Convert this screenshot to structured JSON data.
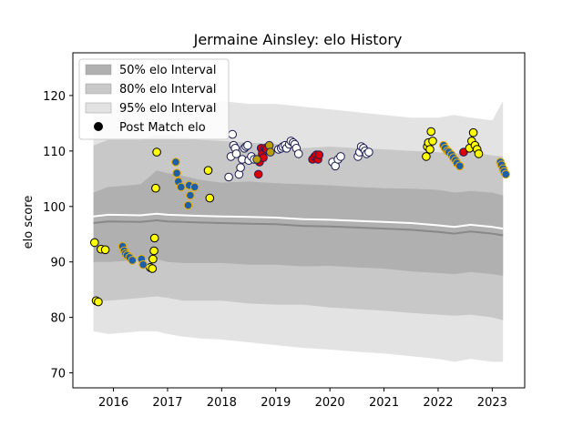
{
  "chart_data": {
    "type": "scatter",
    "title": "Jermaine Ainsley: elo History",
    "xlabel": "",
    "ylabel": "elo score",
    "xlim": [
      2015.25,
      2023.6
    ],
    "ylim": [
      67.3,
      127.7
    ],
    "xticks": [
      2016,
      2017,
      2018,
      2019,
      2020,
      2021,
      2022,
      2023
    ],
    "xtick_labels": [
      "2016",
      "2017",
      "2018",
      "2019",
      "2020",
      "2021",
      "2022",
      "2023"
    ],
    "yticks": [
      70,
      80,
      90,
      100,
      110,
      120
    ],
    "ytick_labels": [
      "70",
      "80",
      "90",
      "100",
      "110",
      "120"
    ],
    "grid": false,
    "legend_position": "top-left",
    "legend": [
      {
        "label": "50% elo Interval",
        "kind": "patch",
        "color": "#b0b0b0"
      },
      {
        "label": "80% elo Interval",
        "kind": "patch",
        "color": "#c8c8c8"
      },
      {
        "label": "95% elo Interval",
        "kind": "patch",
        "color": "#e3e3e3"
      },
      {
        "label": "Post Match elo",
        "kind": "marker",
        "color": "#000000"
      }
    ],
    "intervals": {
      "x": [
        2015.63,
        2015.9,
        2016.5,
        2016.8,
        2017.0,
        2017.3,
        2017.6,
        2018.0,
        2018.5,
        2019.0,
        2019.5,
        2020.0,
        2020.5,
        2021.0,
        2021.5,
        2022.0,
        2022.3,
        2022.6,
        2023.0,
        2023.2
      ],
      "mean": [
        97.0,
        97.3,
        97.2,
        97.5,
        97.3,
        97.2,
        97.1,
        97.0,
        96.9,
        96.8,
        96.5,
        96.4,
        96.2,
        96.0,
        95.8,
        95.4,
        95.1,
        95.5,
        95.1,
        94.8
      ],
      "p50": [
        [
          90.0,
          102.5
        ],
        [
          90.0,
          103.5
        ],
        [
          90.3,
          104.0
        ],
        [
          90.5,
          106.5
        ],
        [
          90.0,
          106.0
        ],
        [
          89.8,
          105.5
        ],
        [
          89.8,
          104.8
        ],
        [
          89.8,
          104.3
        ],
        [
          89.5,
          104.5
        ],
        [
          89.5,
          104.2
        ],
        [
          89.2,
          104.0
        ],
        [
          89.3,
          103.8
        ],
        [
          89.0,
          103.5
        ],
        [
          88.8,
          103.3
        ],
        [
          88.3,
          103.2
        ],
        [
          88.0,
          103.0
        ],
        [
          87.8,
          102.5
        ],
        [
          88.2,
          102.8
        ],
        [
          87.8,
          102.5
        ],
        [
          87.5,
          102.0
        ]
      ],
      "p80": [
        [
          83.0,
          111.0
        ],
        [
          83.0,
          112.0
        ],
        [
          83.5,
          112.0
        ],
        [
          83.8,
          113.0
        ],
        [
          83.5,
          113.0
        ],
        [
          83.0,
          112.5
        ],
        [
          83.0,
          112.0
        ],
        [
          83.0,
          111.8
        ],
        [
          82.5,
          111.5
        ],
        [
          82.3,
          111.3
        ],
        [
          82.3,
          110.5
        ],
        [
          81.8,
          110.8
        ],
        [
          81.5,
          110.5
        ],
        [
          81.2,
          110.3
        ],
        [
          80.8,
          110.0
        ],
        [
          80.5,
          109.8
        ],
        [
          80.3,
          109.5
        ],
        [
          80.5,
          109.8
        ],
        [
          80.0,
          109.2
        ],
        [
          79.5,
          109.0
        ]
      ],
      "p95": [
        [
          77.5,
          117.0
        ],
        [
          77.0,
          117.5
        ],
        [
          77.5,
          118.0
        ],
        [
          77.5,
          118.5
        ],
        [
          77.0,
          118.5
        ],
        [
          76.5,
          118.0
        ],
        [
          76.2,
          118.0
        ],
        [
          76.0,
          119.0
        ],
        [
          75.5,
          118.5
        ],
        [
          75.0,
          118.5
        ],
        [
          74.5,
          118.0
        ],
        [
          74.2,
          117.5
        ],
        [
          73.8,
          117.0
        ],
        [
          73.5,
          116.5
        ],
        [
          73.0,
          116.0
        ],
        [
          72.5,
          116.0
        ],
        [
          72.0,
          116.5
        ],
        [
          72.5,
          116.0
        ],
        [
          72.0,
          115.5
        ],
        [
          72.0,
          119.0
        ]
      ]
    },
    "series": [
      {
        "color": "#ffff00",
        "edge": "#000000",
        "points": [
          [
            2015.65,
            93.5
          ],
          [
            2015.68,
            83.0
          ],
          [
            2015.72,
            82.8
          ],
          [
            2015.77,
            92.3
          ],
          [
            2015.85,
            92.2
          ],
          [
            2016.68,
            89.0
          ],
          [
            2016.72,
            88.8
          ],
          [
            2016.73,
            90.5
          ],
          [
            2016.75,
            92.0
          ],
          [
            2016.76,
            94.3
          ],
          [
            2016.78,
            103.3
          ],
          [
            2016.8,
            109.8
          ],
          [
            2017.75,
            106.5
          ],
          [
            2017.78,
            101.5
          ]
        ]
      },
      {
        "color": "#1f5fa8",
        "edge": "#f0b000",
        "points": [
          [
            2016.17,
            92.8
          ],
          [
            2016.2,
            92.0
          ],
          [
            2016.22,
            91.5
          ],
          [
            2016.25,
            91.2
          ],
          [
            2016.3,
            90.8
          ],
          [
            2016.35,
            90.3
          ],
          [
            2016.52,
            90.5
          ],
          [
            2016.55,
            89.5
          ],
          [
            2017.15,
            108.0
          ],
          [
            2017.17,
            106.0
          ],
          [
            2017.2,
            104.5
          ],
          [
            2017.25,
            103.5
          ],
          [
            2017.38,
            100.2
          ],
          [
            2017.4,
            103.8
          ],
          [
            2017.42,
            102.0
          ],
          [
            2017.5,
            103.5
          ]
        ]
      },
      {
        "color": "#ffffff",
        "edge": "#1a1a50",
        "points": [
          [
            2018.13,
            105.3
          ],
          [
            2018.17,
            109.0
          ],
          [
            2018.2,
            113.0
          ],
          [
            2018.22,
            111.0
          ],
          [
            2018.25,
            110.5
          ],
          [
            2018.27,
            109.5
          ],
          [
            2018.32,
            105.8
          ],
          [
            2018.35,
            107.0
          ],
          [
            2018.38,
            108.5
          ],
          [
            2018.42,
            110.5
          ],
          [
            2018.45,
            110.8
          ],
          [
            2018.48,
            111.0
          ],
          [
            2018.5,
            108.3
          ],
          [
            2018.55,
            109.0
          ],
          [
            2018.6,
            108.5
          ],
          [
            2019.05,
            110.3
          ],
          [
            2019.1,
            110.5
          ],
          [
            2019.13,
            110.8
          ],
          [
            2019.17,
            111.0
          ],
          [
            2019.2,
            110.5
          ],
          [
            2019.25,
            111.2
          ],
          [
            2019.28,
            111.8
          ],
          [
            2019.32,
            111.5
          ],
          [
            2019.35,
            111.2
          ],
          [
            2019.38,
            110.5
          ],
          [
            2019.42,
            109.5
          ],
          [
            2020.05,
            108.0
          ],
          [
            2020.1,
            107.3
          ],
          [
            2020.15,
            108.5
          ],
          [
            2020.2,
            109.0
          ],
          [
            2020.52,
            109.0
          ],
          [
            2020.55,
            109.8
          ],
          [
            2020.58,
            110.8
          ],
          [
            2020.62,
            110.5
          ],
          [
            2020.65,
            110.0
          ],
          [
            2020.68,
            109.5
          ],
          [
            2020.72,
            109.8
          ]
        ]
      },
      {
        "color": "#dd0000",
        "edge": "#202060",
        "points": [
          [
            2018.68,
            105.8
          ],
          [
            2018.7,
            108.0
          ],
          [
            2018.73,
            110.5
          ],
          [
            2018.75,
            109.5
          ],
          [
            2018.77,
            108.8
          ],
          [
            2018.8,
            110.5
          ],
          [
            2018.83,
            110.3
          ],
          [
            2019.68,
            108.5
          ],
          [
            2019.72,
            109.0
          ],
          [
            2019.75,
            109.3
          ],
          [
            2019.78,
            108.5
          ],
          [
            2019.8,
            109.3
          ],
          [
            2022.47,
            109.8
          ]
        ]
      },
      {
        "color": "#b8a000",
        "edge": "#202060",
        "points": [
          [
            2018.65,
            108.5
          ],
          [
            2018.88,
            111.0
          ],
          [
            2018.9,
            109.8
          ]
        ]
      },
      {
        "color": "#ffff00",
        "edge": "#000000",
        "points": [
          [
            2021.78,
            109.0
          ],
          [
            2021.8,
            110.8
          ],
          [
            2021.82,
            111.5
          ],
          [
            2021.85,
            110.3
          ],
          [
            2021.87,
            113.5
          ],
          [
            2021.9,
            111.8
          ],
          [
            2022.58,
            110.5
          ],
          [
            2022.62,
            111.8
          ],
          [
            2022.65,
            113.3
          ],
          [
            2022.68,
            111.0
          ],
          [
            2022.72,
            110.3
          ],
          [
            2022.75,
            109.5
          ]
        ]
      },
      {
        "color": "#1f5fa8",
        "edge": "#f0b000",
        "points": [
          [
            2022.1,
            111.0
          ],
          [
            2022.13,
            110.5
          ],
          [
            2022.17,
            110.0
          ],
          [
            2022.2,
            109.8
          ],
          [
            2022.25,
            109.3
          ],
          [
            2022.28,
            108.8
          ],
          [
            2022.32,
            108.3
          ],
          [
            2022.35,
            107.8
          ],
          [
            2022.4,
            107.3
          ],
          [
            2023.15,
            108.0
          ],
          [
            2023.17,
            107.5
          ],
          [
            2023.2,
            106.8
          ],
          [
            2023.22,
            106.3
          ],
          [
            2023.25,
            105.8
          ]
        ]
      }
    ]
  }
}
